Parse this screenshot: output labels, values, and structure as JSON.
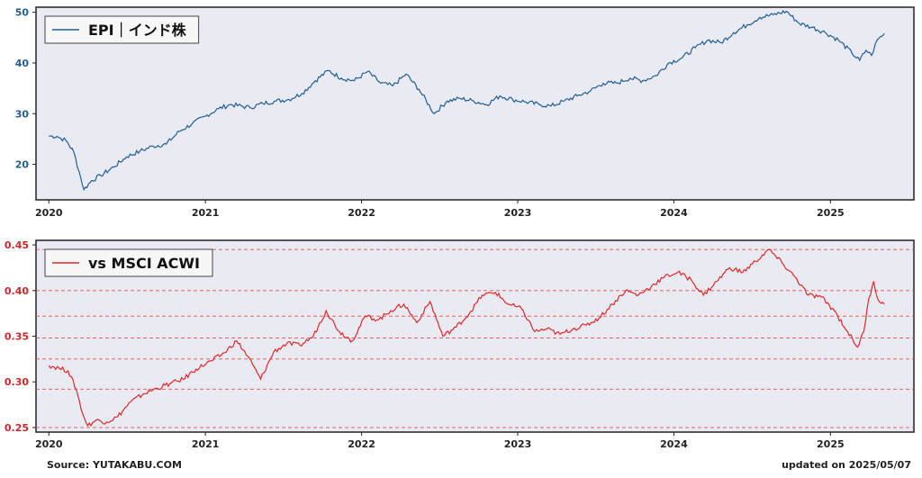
{
  "chart_data": [
    {
      "type": "line",
      "legend_label": "EPI｜インド株",
      "legend_position": "top-left",
      "color": "#1f5f96",
      "ylim": [
        13,
        51
      ],
      "yticks": [
        20,
        30,
        40,
        50
      ],
      "xticks": [
        "2020",
        "2021",
        "2022",
        "2023",
        "2024",
        "2025"
      ],
      "grid": false,
      "points": [
        {
          "x": "2020-01-01",
          "y": 25.6
        },
        {
          "x": "2020-01-20",
          "y": 25.5
        },
        {
          "x": "2020-02-10",
          "y": 24.7
        },
        {
          "x": "2020-02-28",
          "y": 22.5
        },
        {
          "x": "2020-03-12",
          "y": 18.5
        },
        {
          "x": "2020-03-23",
          "y": 15.0
        },
        {
          "x": "2020-04-10",
          "y": 16.8
        },
        {
          "x": "2020-05-01",
          "y": 17.8
        },
        {
          "x": "2020-06-01",
          "y": 19.5
        },
        {
          "x": "2020-07-01",
          "y": 21.5
        },
        {
          "x": "2020-08-01",
          "y": 22.6
        },
        {
          "x": "2020-09-01",
          "y": 23.6
        },
        {
          "x": "2020-10-01",
          "y": 24.0
        },
        {
          "x": "2020-11-01",
          "y": 26.5
        },
        {
          "x": "2020-12-01",
          "y": 28.0
        },
        {
          "x": "2021-01-01",
          "y": 29.5
        },
        {
          "x": "2021-02-01",
          "y": 31.0
        },
        {
          "x": "2021-03-01",
          "y": 31.8
        },
        {
          "x": "2021-04-15",
          "y": 31.2
        },
        {
          "x": "2021-05-15",
          "y": 32.0
        },
        {
          "x": "2021-06-15",
          "y": 32.5
        },
        {
          "x": "2021-07-15",
          "y": 32.8
        },
        {
          "x": "2021-08-15",
          "y": 34.0
        },
        {
          "x": "2021-09-15",
          "y": 36.5
        },
        {
          "x": "2021-10-15",
          "y": 38.5
        },
        {
          "x": "2021-11-15",
          "y": 37.0
        },
        {
          "x": "2021-12-15",
          "y": 36.5
        },
        {
          "x": "2022-01-15",
          "y": 38.3
        },
        {
          "x": "2022-02-15",
          "y": 36.0
        },
        {
          "x": "2022-03-15",
          "y": 35.5
        },
        {
          "x": "2022-04-15",
          "y": 37.8
        },
        {
          "x": "2022-05-15",
          "y": 34.8
        },
        {
          "x": "2022-06-20",
          "y": 30.0
        },
        {
          "x": "2022-07-20",
          "y": 32.5
        },
        {
          "x": "2022-08-20",
          "y": 33.0
        },
        {
          "x": "2022-09-20",
          "y": 32.5
        },
        {
          "x": "2022-10-20",
          "y": 31.8
        },
        {
          "x": "2022-11-20",
          "y": 33.5
        },
        {
          "x": "2022-12-20",
          "y": 32.8
        },
        {
          "x": "2023-01-20",
          "y": 32.3
        },
        {
          "x": "2023-02-20",
          "y": 31.8
        },
        {
          "x": "2023-03-20",
          "y": 31.5
        },
        {
          "x": "2023-04-20",
          "y": 32.5
        },
        {
          "x": "2023-05-20",
          "y": 33.5
        },
        {
          "x": "2023-06-20",
          "y": 34.5
        },
        {
          "x": "2023-07-20",
          "y": 36.0
        },
        {
          "x": "2023-08-20",
          "y": 36.0
        },
        {
          "x": "2023-09-20",
          "y": 37.0
        },
        {
          "x": "2023-10-20",
          "y": 36.5
        },
        {
          "x": "2023-11-20",
          "y": 37.5
        },
        {
          "x": "2023-12-20",
          "y": 40.0
        },
        {
          "x": "2024-01-20",
          "y": 41.0
        },
        {
          "x": "2024-02-20",
          "y": 43.0
        },
        {
          "x": "2024-03-20",
          "y": 44.5
        },
        {
          "x": "2024-04-20",
          "y": 44.0
        },
        {
          "x": "2024-05-20",
          "y": 46.0
        },
        {
          "x": "2024-06-20",
          "y": 47.5
        },
        {
          "x": "2024-07-20",
          "y": 49.0
        },
        {
          "x": "2024-08-20",
          "y": 49.5
        },
        {
          "x": "2024-09-20",
          "y": 50.2
        },
        {
          "x": "2024-10-20",
          "y": 47.8
        },
        {
          "x": "2024-11-20",
          "y": 47.0
        },
        {
          "x": "2024-12-20",
          "y": 46.0
        },
        {
          "x": "2025-01-20",
          "y": 44.5
        },
        {
          "x": "2025-02-20",
          "y": 42.0
        },
        {
          "x": "2025-03-10",
          "y": 40.5
        },
        {
          "x": "2025-03-25",
          "y": 42.5
        },
        {
          "x": "2025-04-07",
          "y": 41.5
        },
        {
          "x": "2025-04-20",
          "y": 44.5
        },
        {
          "x": "2025-05-07",
          "y": 45.8
        }
      ]
    },
    {
      "type": "line",
      "legend_label": "vs MSCI ACWI",
      "legend_position": "top-left",
      "color": "#e02828",
      "ylim": [
        0.245,
        0.455
      ],
      "yticks": [
        0.25,
        0.3,
        0.35,
        0.4,
        0.45
      ],
      "ytick_labels": [
        "0.25",
        "0.30",
        "0.35",
        "0.40",
        "0.45"
      ],
      "xticks": [
        "2020",
        "2021",
        "2022",
        "2023",
        "2024",
        "2025"
      ],
      "reference_lines": [
        0.25,
        0.292,
        0.325,
        0.348,
        0.372,
        0.4,
        0.445
      ],
      "points": [
        {
          "x": "2020-01-01",
          "y": 0.318
        },
        {
          "x": "2020-01-25",
          "y": 0.315
        },
        {
          "x": "2020-02-15",
          "y": 0.312
        },
        {
          "x": "2020-03-05",
          "y": 0.292
        },
        {
          "x": "2020-03-20",
          "y": 0.265
        },
        {
          "x": "2020-04-01",
          "y": 0.252
        },
        {
          "x": "2020-04-20",
          "y": 0.258
        },
        {
          "x": "2020-05-15",
          "y": 0.256
        },
        {
          "x": "2020-06-10",
          "y": 0.262
        },
        {
          "x": "2020-07-10",
          "y": 0.278
        },
        {
          "x": "2020-08-10",
          "y": 0.287
        },
        {
          "x": "2020-09-10",
          "y": 0.293
        },
        {
          "x": "2020-10-10",
          "y": 0.298
        },
        {
          "x": "2020-11-10",
          "y": 0.303
        },
        {
          "x": "2020-12-10",
          "y": 0.314
        },
        {
          "x": "2021-01-15",
          "y": 0.323
        },
        {
          "x": "2021-02-15",
          "y": 0.332
        },
        {
          "x": "2021-03-15",
          "y": 0.345
        },
        {
          "x": "2021-04-10",
          "y": 0.328
        },
        {
          "x": "2021-05-10",
          "y": 0.303
        },
        {
          "x": "2021-06-10",
          "y": 0.333
        },
        {
          "x": "2021-07-10",
          "y": 0.342
        },
        {
          "x": "2021-08-10",
          "y": 0.34
        },
        {
          "x": "2021-09-10",
          "y": 0.35
        },
        {
          "x": "2021-10-10",
          "y": 0.378
        },
        {
          "x": "2021-11-10",
          "y": 0.355
        },
        {
          "x": "2021-12-10",
          "y": 0.345
        },
        {
          "x": "2022-01-10",
          "y": 0.372
        },
        {
          "x": "2022-02-10",
          "y": 0.368
        },
        {
          "x": "2022-03-10",
          "y": 0.378
        },
        {
          "x": "2022-04-10",
          "y": 0.385
        },
        {
          "x": "2022-05-10",
          "y": 0.365
        },
        {
          "x": "2022-06-10",
          "y": 0.388
        },
        {
          "x": "2022-07-10",
          "y": 0.35
        },
        {
          "x": "2022-08-10",
          "y": 0.36
        },
        {
          "x": "2022-09-10",
          "y": 0.375
        },
        {
          "x": "2022-10-10",
          "y": 0.395
        },
        {
          "x": "2022-11-10",
          "y": 0.398
        },
        {
          "x": "2022-12-10",
          "y": 0.385
        },
        {
          "x": "2023-01-10",
          "y": 0.38
        },
        {
          "x": "2023-02-10",
          "y": 0.355
        },
        {
          "x": "2023-03-10",
          "y": 0.358
        },
        {
          "x": "2023-04-10",
          "y": 0.352
        },
        {
          "x": "2023-05-10",
          "y": 0.358
        },
        {
          "x": "2023-06-10",
          "y": 0.362
        },
        {
          "x": "2023-07-10",
          "y": 0.37
        },
        {
          "x": "2023-08-10",
          "y": 0.385
        },
        {
          "x": "2023-09-10",
          "y": 0.4
        },
        {
          "x": "2023-10-10",
          "y": 0.395
        },
        {
          "x": "2023-11-10",
          "y": 0.405
        },
        {
          "x": "2023-12-10",
          "y": 0.415
        },
        {
          "x": "2024-01-10",
          "y": 0.42
        },
        {
          "x": "2024-02-10",
          "y": 0.412
        },
        {
          "x": "2024-03-10",
          "y": 0.395
        },
        {
          "x": "2024-04-10",
          "y": 0.41
        },
        {
          "x": "2024-05-10",
          "y": 0.425
        },
        {
          "x": "2024-06-10",
          "y": 0.42
        },
        {
          "x": "2024-07-10",
          "y": 0.432
        },
        {
          "x": "2024-08-10",
          "y": 0.445
        },
        {
          "x": "2024-09-10",
          "y": 0.43
        },
        {
          "x": "2024-10-10",
          "y": 0.415
        },
        {
          "x": "2024-11-10",
          "y": 0.395
        },
        {
          "x": "2024-12-10",
          "y": 0.393
        },
        {
          "x": "2025-01-10",
          "y": 0.378
        },
        {
          "x": "2025-02-10",
          "y": 0.355
        },
        {
          "x": "2025-03-05",
          "y": 0.338
        },
        {
          "x": "2025-03-20",
          "y": 0.355
        },
        {
          "x": "2025-04-01",
          "y": 0.392
        },
        {
          "x": "2025-04-12",
          "y": 0.41
        },
        {
          "x": "2025-04-22",
          "y": 0.39
        },
        {
          "x": "2025-05-07",
          "y": 0.385
        }
      ]
    }
  ],
  "footer": {
    "source": "Source: YUTAKABU.COM",
    "updated": "updated on 2025/05/07"
  }
}
